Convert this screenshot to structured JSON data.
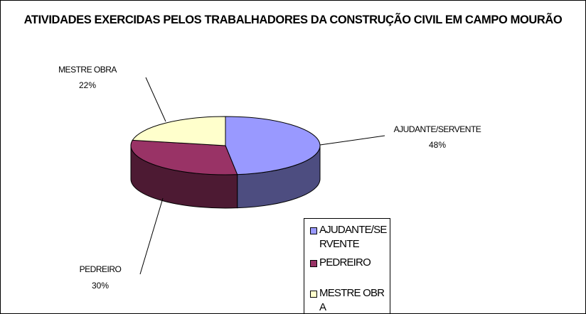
{
  "chart_data": {
    "type": "pie",
    "title": "ATIVIDADES EXERCIDAS PELOS TRABALHADORES DA CONSTRUÇÃO CIVIL EM CAMPO MOURÃO",
    "categories": [
      "AJUDANTE/SERVENTE",
      "PEDREIRO",
      "MESTRE OBRA"
    ],
    "values": [
      48,
      30,
      22
    ],
    "value_labels": [
      "48%",
      "30%",
      "22%"
    ],
    "colors": [
      "#9999ff",
      "#993366",
      "#ffffcc"
    ],
    "legend": "bottom-right"
  }
}
